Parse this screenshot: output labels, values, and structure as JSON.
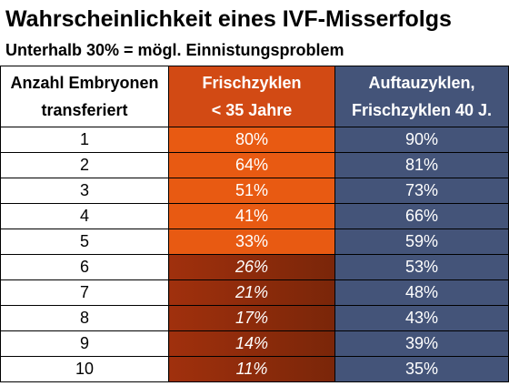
{
  "title": "Wahrscheinlichkeit eines IVF-Misserfolgs",
  "subtitle": "Unterhalb 30% = mögl. Einnistungsproblem",
  "table": {
    "headers": {
      "col1_line1": "Anzahl Embryonen",
      "col1_line2": "transferiert",
      "col2_line1": "Frischzyklen",
      "col2_line2": "< 35 Jahre",
      "col3_line1": "Auftauzyklen,",
      "col3_line2": "Frischzyklen 40 J."
    },
    "rows": [
      {
        "n": "1",
        "fresh": "80%",
        "thaw": "90%",
        "low": false
      },
      {
        "n": "2",
        "fresh": "64%",
        "thaw": "81%",
        "low": false
      },
      {
        "n": "3",
        "fresh": "51%",
        "thaw": "73%",
        "low": false
      },
      {
        "n": "4",
        "fresh": "41%",
        "thaw": "66%",
        "low": false
      },
      {
        "n": "5",
        "fresh": "33%",
        "thaw": "59%",
        "low": false
      },
      {
        "n": "6",
        "fresh": "26%",
        "thaw": "53%",
        "low": true
      },
      {
        "n": "7",
        "fresh": "21%",
        "thaw": "48%",
        "low": true
      },
      {
        "n": "8",
        "fresh": "17%",
        "thaw": "43%",
        "low": true
      },
      {
        "n": "9",
        "fresh": "14%",
        "thaw": "39%",
        "low": true
      },
      {
        "n": "10",
        "fresh": "11%",
        "thaw": "35%",
        "low": true
      }
    ]
  },
  "colors": {
    "fresh_header": "#d24a14",
    "fresh_cell": "#e85a12",
    "fresh_low_cell": "#8a2b0b",
    "thaw": "#445479"
  }
}
